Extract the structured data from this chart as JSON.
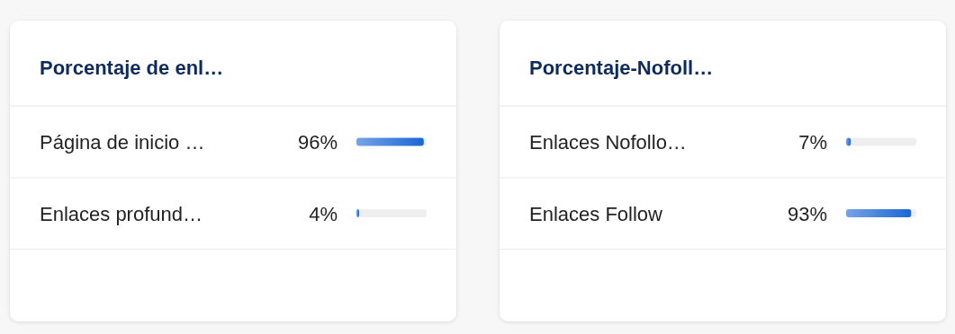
{
  "chart_data": [
    {
      "type": "bar",
      "orientation": "horizontal",
      "stacked": true,
      "title": "Porcentaje de enl…",
      "categories": [
        "Página de inicio …",
        "Enlaces profund…"
      ],
      "series": [
        {
          "color": "#1a66d6",
          "values": [
            96,
            4
          ],
          "value_labels": [
            "96%",
            "4%"
          ]
        },
        {
          "color": "#eeeeee",
          "values": [
            4,
            96
          ]
        }
      ],
      "xlim": [
        0,
        100
      ]
    },
    {
      "type": "bar",
      "orientation": "horizontal",
      "stacked": true,
      "title": "Porcentaje-Nofoll…",
      "categories": [
        "Enlaces Nofollo…",
        "Enlaces Follow"
      ],
      "series": [
        {
          "color": "#1a66d6",
          "values": [
            7,
            93
          ],
          "value_labels": [
            "7%",
            "93%"
          ]
        },
        {
          "color": "#eeeeee",
          "values": [
            93,
            7
          ]
        }
      ],
      "xlim": [
        0,
        100
      ]
    }
  ]
}
